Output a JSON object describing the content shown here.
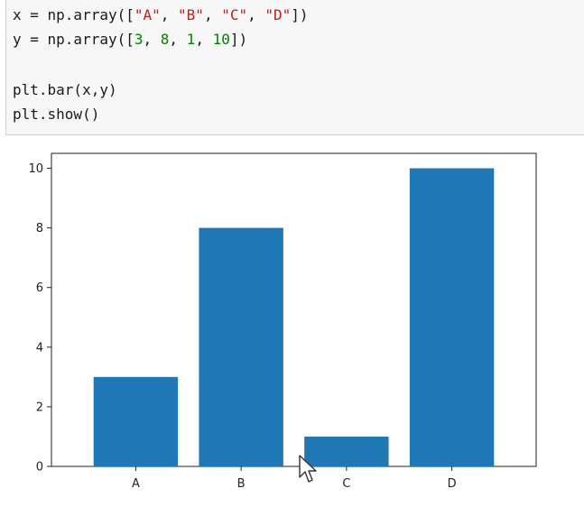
{
  "code": {
    "line1": {
      "pre": "x = np.array([",
      "s1": "\"A\"",
      "c1": ", ",
      "s2": "\"B\"",
      "c2": ", ",
      "s3": "\"C\"",
      "c3": ", ",
      "s4": "\"D\"",
      "post": "])"
    },
    "line2": {
      "pre": "y = np.array([",
      "n1": "3",
      "c1": ", ",
      "n2": "8",
      "c2": ", ",
      "n3": "1",
      "c3": ", ",
      "n4": "10",
      "post": "])"
    },
    "line3": "plt.bar(x,y)",
    "line4": "plt.show()"
  },
  "chart_data": {
    "type": "bar",
    "categories": [
      "A",
      "B",
      "C",
      "D"
    ],
    "values": [
      3,
      8,
      1,
      10
    ],
    "title": "",
    "xlabel": "",
    "ylabel": "",
    "ylim": [
      0,
      10.5
    ],
    "yticks": [
      0,
      2,
      4,
      6,
      8,
      10
    ],
    "bar_color": "#1f77b4",
    "grid": false
  }
}
